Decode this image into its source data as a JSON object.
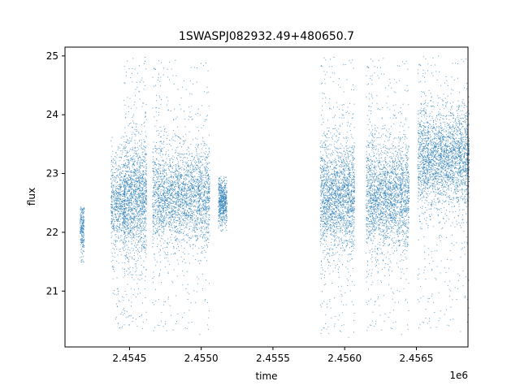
{
  "chart_data": {
    "type": "scatter",
    "title": "1SWASPJ082932.49+480650.7",
    "xlabel": "time",
    "ylabel": "flux",
    "x_offset_label": "1e6",
    "xlim": [
      2.45405,
      2.45686
    ],
    "ylim": [
      20.05,
      25.15
    ],
    "x_ticks": [
      2.4545,
      2.455,
      2.4555,
      2.456,
      2.4565
    ],
    "x_tick_labels": [
      "2.4545",
      "2.4550",
      "2.4555",
      "2.4560",
      "2.4565"
    ],
    "y_ticks": [
      21,
      22,
      23,
      24,
      25
    ],
    "y_tick_labels": [
      "21",
      "22",
      "23",
      "24",
      "25"
    ],
    "grid": false,
    "marker_color": "#1f77b4",
    "clusters": [
      {
        "x_center": 2.45417,
        "x_width": 3e-05,
        "flux_center": 22.1,
        "flux_spread": 0.25,
        "flux_min": 21.45,
        "flux_max": 22.45,
        "density": 0.4
      },
      {
        "x_center": 2.45442,
        "x_width": 0.0001,
        "flux_center": 22.5,
        "flux_spread": 0.35,
        "flux_min": 20.35,
        "flux_max": 23.65,
        "density": 1.2
      },
      {
        "x_center": 2.45454,
        "x_width": 0.00016,
        "flux_center": 22.6,
        "flux_spread": 0.5,
        "flux_min": 20.35,
        "flux_max": 24.98,
        "density": 2.5
      },
      {
        "x_center": 2.45486,
        "x_width": 0.0004,
        "flux_center": 22.6,
        "flux_spread": 0.4,
        "flux_min": 20.25,
        "flux_max": 24.95,
        "density": 4.5
      },
      {
        "x_center": 2.45515,
        "x_width": 6e-05,
        "flux_center": 22.5,
        "flux_spread": 0.2,
        "flux_min": 22.0,
        "flux_max": 22.95,
        "density": 0.9
      },
      {
        "x_center": 2.45595,
        "x_width": 0.00024,
        "flux_center": 22.6,
        "flux_spread": 0.45,
        "flux_min": 20.2,
        "flux_max": 25.0,
        "density": 3.5
      },
      {
        "x_center": 2.4563,
        "x_width": 0.0003,
        "flux_center": 22.6,
        "flux_spread": 0.45,
        "flux_min": 20.25,
        "flux_max": 24.98,
        "density": 4.0
      },
      {
        "x_center": 2.45669,
        "x_width": 0.00036,
        "flux_center": 23.25,
        "flux_spread": 0.4,
        "flux_min": 20.3,
        "flux_max": 25.02,
        "density": 4.5
      }
    ]
  }
}
